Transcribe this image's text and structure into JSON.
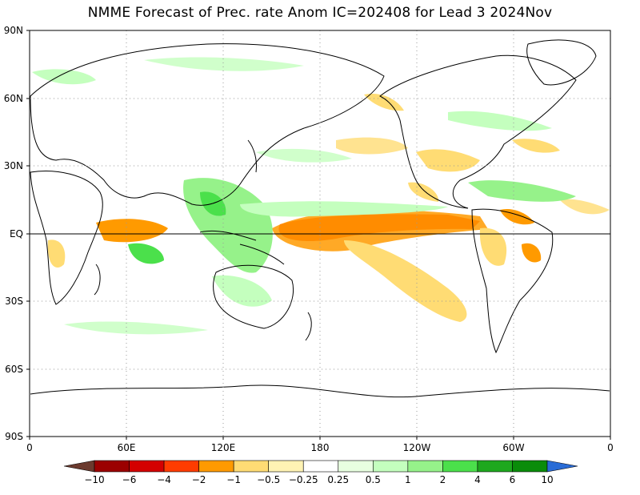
{
  "title": "NMME Forecast of Prec. rate Anom IC=202408 for Lead 3 2024Nov",
  "lat_labels": [
    "90N",
    "60N",
    "30N",
    "EQ",
    "30S",
    "60S",
    "90S"
  ],
  "lon_labels": [
    "0",
    "60E",
    "120E",
    "180",
    "120W",
    "60W",
    "0"
  ],
  "colorbar": {
    "labels": [
      "−10",
      "−6",
      "−4",
      "−2",
      "−1",
      "−0.5",
      "−0.25",
      "0.25",
      "0.5",
      "1",
      "2",
      "4",
      "6",
      "10"
    ],
    "colors": [
      "#6b3a2e",
      "#9b0000",
      "#d40000",
      "#ff3c00",
      "#ff9a00",
      "#ffdc74",
      "#fff3b4",
      "#ffffff",
      "#e8ffe0",
      "#c4ffbe",
      "#96f28a",
      "#4be04b",
      "#1ea81e",
      "#0a8c0a",
      "#2a6cd6"
    ]
  },
  "colors": {
    "coast": "#000000",
    "grid": "#9a9a9a",
    "equator": "#000000"
  }
}
